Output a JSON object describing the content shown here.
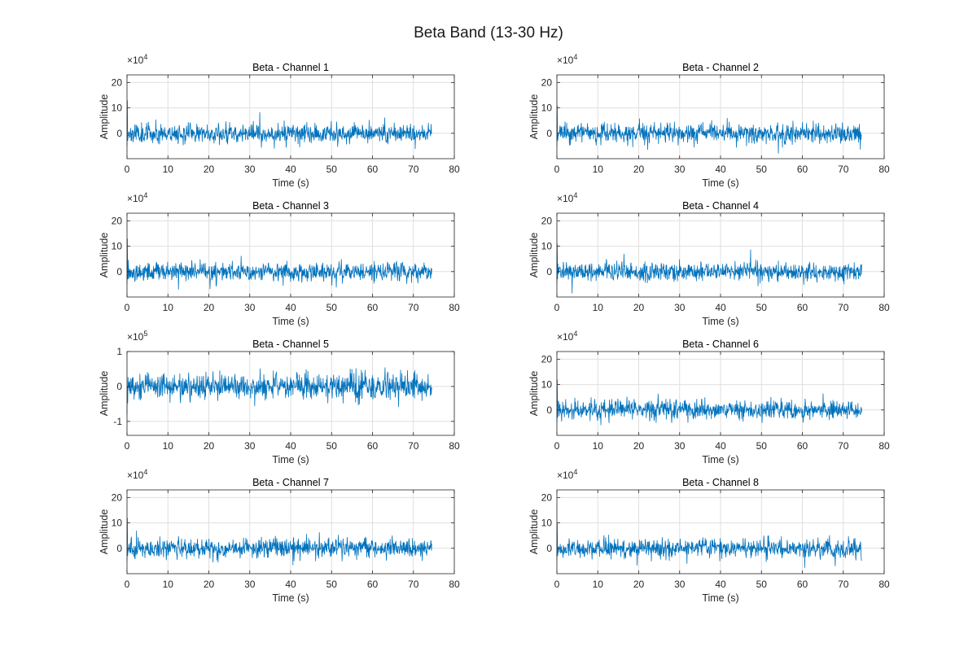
{
  "figure": {
    "title": "Beta Band (13-30 Hz)"
  },
  "colors": {
    "trace": "#0072BD",
    "grid": "#dfdfdf",
    "axis": "#262626"
  },
  "chart_data": [
    {
      "type": "line",
      "title": "Beta - Channel 1",
      "xlabel": "Time (s)",
      "ylabel": "Amplitude",
      "exponent": "4",
      "xlim": [
        0,
        80
      ],
      "ylim": [
        -10,
        23
      ],
      "xticks": [
        "0",
        "10",
        "20",
        "30",
        "40",
        "50",
        "60",
        "70",
        "80"
      ],
      "yticks": [
        "0",
        "10",
        "20"
      ],
      "ytick_values": [
        0,
        10,
        20
      ],
      "grid": true,
      "signal": {
        "duration": 74.5,
        "amplitude": 2.5,
        "peak_start": 13,
        "trough": -5,
        "seed": 11
      }
    },
    {
      "type": "line",
      "title": "Beta - Channel 2",
      "xlabel": "Time (s)",
      "ylabel": "Amplitude",
      "exponent": "4",
      "xlim": [
        0,
        80
      ],
      "ylim": [
        -10,
        23
      ],
      "xticks": [
        "0",
        "10",
        "20",
        "30",
        "40",
        "50",
        "60",
        "70",
        "80"
      ],
      "yticks": [
        "0",
        "10",
        "20"
      ],
      "ytick_values": [
        0,
        10,
        20
      ],
      "grid": true,
      "signal": {
        "duration": 74.5,
        "amplitude": 2.5,
        "peak_start": 11,
        "trough": -5,
        "seed": 23
      }
    },
    {
      "type": "line",
      "title": "Beta - Channel 3",
      "xlabel": "Time (s)",
      "ylabel": "Amplitude",
      "exponent": "4",
      "xlim": [
        0,
        80
      ],
      "ylim": [
        -10,
        23
      ],
      "xticks": [
        "0",
        "10",
        "20",
        "30",
        "40",
        "50",
        "60",
        "70",
        "80"
      ],
      "yticks": [
        "0",
        "10",
        "20"
      ],
      "ytick_values": [
        0,
        10,
        20
      ],
      "grid": true,
      "signal": {
        "duration": 74.5,
        "amplitude": 2.5,
        "peak_start": 13,
        "trough": -5,
        "seed": 37
      }
    },
    {
      "type": "line",
      "title": "Beta - Channel 4",
      "xlabel": "Time (s)",
      "ylabel": "Amplitude",
      "exponent": "4",
      "xlim": [
        0,
        80
      ],
      "ylim": [
        -10,
        23
      ],
      "xticks": [
        "0",
        "10",
        "20",
        "30",
        "40",
        "50",
        "60",
        "70",
        "80"
      ],
      "yticks": [
        "0",
        "10",
        "20"
      ],
      "ytick_values": [
        0,
        10,
        20
      ],
      "grid": true,
      "signal": {
        "duration": 74.5,
        "amplitude": 2.5,
        "peak_start": 11,
        "trough": -5,
        "seed": 41
      }
    },
    {
      "type": "line",
      "title": "Beta - Channel 5",
      "xlabel": "Time (s)",
      "ylabel": "Amplitude",
      "exponent": "5",
      "xlim": [
        0,
        80
      ],
      "ylim": [
        -1.4,
        1
      ],
      "xticks": [
        "0",
        "10",
        "20",
        "30",
        "40",
        "50",
        "60",
        "70",
        "80"
      ],
      "yticks": [
        "-1",
        "0",
        "1"
      ],
      "ytick_values": [
        -1,
        0,
        1
      ],
      "grid": true,
      "signal": {
        "duration": 74.5,
        "amplitude": 0.25,
        "peak_start": 0,
        "trough": -0.8,
        "seed": 53
      }
    },
    {
      "type": "line",
      "title": "Beta - Channel 6",
      "xlabel": "Time (s)",
      "ylabel": "Amplitude",
      "exponent": "4",
      "xlim": [
        0,
        80
      ],
      "ylim": [
        -10,
        23
      ],
      "xticks": [
        "0",
        "10",
        "20",
        "30",
        "40",
        "50",
        "60",
        "70",
        "80"
      ],
      "yticks": [
        "0",
        "10",
        "20"
      ],
      "ytick_values": [
        0,
        10,
        20
      ],
      "grid": true,
      "signal": {
        "duration": 74.5,
        "amplitude": 2.5,
        "peak_start": 12,
        "trough": -5,
        "seed": 67
      }
    },
    {
      "type": "line",
      "title": "Beta - Channel 7",
      "xlabel": "Time (s)",
      "ylabel": "Amplitude",
      "exponent": "4",
      "xlim": [
        0,
        80
      ],
      "ylim": [
        -10,
        23
      ],
      "xticks": [
        "0",
        "10",
        "20",
        "30",
        "40",
        "50",
        "60",
        "70",
        "80"
      ],
      "yticks": [
        "0",
        "10",
        "20"
      ],
      "ytick_values": [
        0,
        10,
        20
      ],
      "grid": true,
      "signal": {
        "duration": 74.5,
        "amplitude": 2.5,
        "peak_start": 12,
        "trough": -5,
        "seed": 71
      }
    },
    {
      "type": "line",
      "title": "Beta - Channel 8",
      "xlabel": "Time (s)",
      "ylabel": "Amplitude",
      "exponent": "4",
      "xlim": [
        0,
        80
      ],
      "ylim": [
        -10,
        23
      ],
      "xticks": [
        "0",
        "10",
        "20",
        "30",
        "40",
        "50",
        "60",
        "70",
        "80"
      ],
      "yticks": [
        "0",
        "10",
        "20"
      ],
      "ytick_values": [
        0,
        10,
        20
      ],
      "grid": true,
      "signal": {
        "duration": 74.5,
        "amplitude": 2.5,
        "peak_start": 10,
        "trough": -5,
        "seed": 89
      }
    }
  ]
}
